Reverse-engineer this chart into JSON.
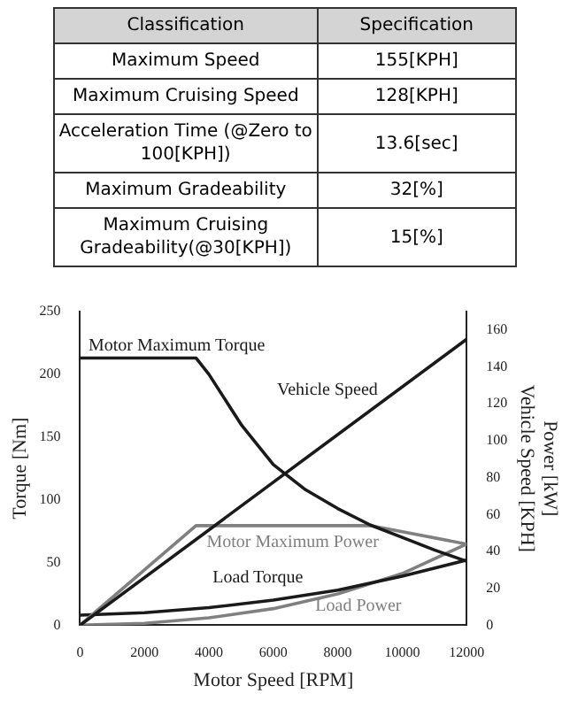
{
  "chart_data": [
    {
      "type": "other",
      "annotations": [
        "Classification",
        "Specification",
        "Maximum Speed",
        "155[KPH]",
        "Maximum Cruising Speed",
        "128[KPH]",
        "Acceleration Time (@Zero to 100[KPH])",
        "13.6[sec]",
        "Maximum Gradeability",
        "32[%]",
        "Maximum Cruising Gradeability(@30[KPH])",
        "15[%]"
      ]
    },
    {
      "type": "line",
      "xlabel": "Motor Speed [RPM]",
      "ylabel": "Torque [Nm]",
      "y2label": "Power [kW]\nVehicle Speed [KPH]",
      "xlim": [
        0,
        12000
      ],
      "xticks": [
        0,
        2000,
        4000,
        6000,
        8000,
        10000,
        12000
      ],
      "ylim": [
        0,
        250
      ],
      "yticks": [
        0,
        50,
        100,
        150,
        200,
        250
      ],
      "y2lim": [
        0,
        170
      ],
      "y2ticks": [
        0,
        20,
        40,
        60,
        80,
        100,
        120,
        140,
        160
      ],
      "grid": false,
      "legend": false,
      "marker": "none",
      "series": [
        {
          "name": "Motor Maximum Torque",
          "color": "#1a1a1a",
          "x": [
            0,
            3600,
            4000,
            5000,
            6000,
            7000,
            8000,
            9000,
            10000,
            11000,
            12000
          ],
          "values": [
            213,
            213,
            200,
            160,
            128,
            108,
            93,
            80,
            70,
            60,
            51
          ]
        },
        {
          "name": "Vehicle Speed",
          "color": "#1a1a1a",
          "axis": "y2",
          "x": [
            0,
            12000
          ],
          "values": [
            0,
            155
          ]
        },
        {
          "name": "Motor Maximum Power",
          "color": "#808080",
          "axis": "y2",
          "x": [
            0,
            3600,
            9000,
            12000
          ],
          "values": [
            0,
            54,
            54,
            44
          ]
        },
        {
          "name": "Load Torque",
          "color": "#1a1a1a",
          "x": [
            0,
            2000,
            4000,
            6000,
            8000,
            10000,
            12000
          ],
          "values": [
            8,
            10,
            14,
            20,
            28,
            39,
            52
          ]
        },
        {
          "name": "Load Power",
          "color": "#808080",
          "axis": "y2",
          "x": [
            0,
            2000,
            4000,
            6000,
            8000,
            10000,
            12000
          ],
          "values": [
            0,
            1,
            4,
            9,
            17,
            28,
            44
          ]
        }
      ]
    }
  ]
}
